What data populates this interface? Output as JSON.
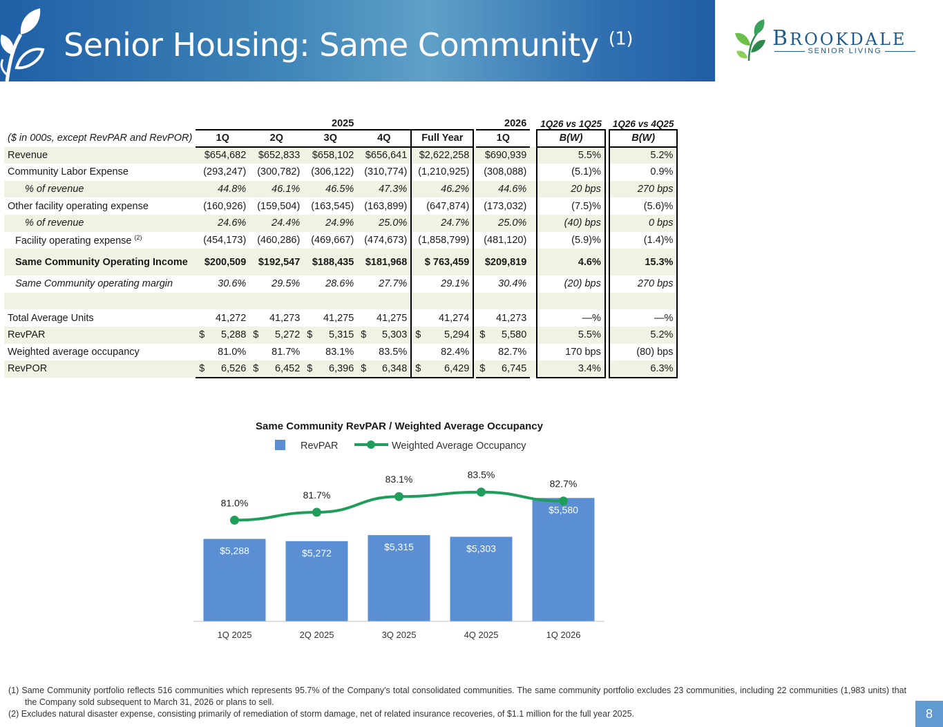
{
  "header": {
    "title": "Senior Housing: Same Community",
    "title_sup": "(1)",
    "logo_name_first": "B",
    "logo_name_rest": "ROOKDALE",
    "logo_sub": "SENIOR LIVING"
  },
  "table": {
    "year_2025": "2025",
    "year_2026": "2026",
    "cmp1_header": "1Q26 vs 1Q25",
    "cmp2_header": "1Q26 vs 4Q25",
    "units_label": "($ in 000s, except RevPAR and RevPOR)",
    "col_headers": [
      "1Q",
      "2Q",
      "3Q",
      "4Q",
      "Full Year",
      "1Q",
      "B(W)",
      "B(W)"
    ],
    "rows": [
      {
        "label": "Revenue",
        "values": [
          "$654,682",
          "$652,833",
          "$658,102",
          "$656,641",
          "$2,622,258",
          "$690,939",
          "5.5%",
          "5.2%"
        ]
      },
      {
        "label": "Community Labor Expense",
        "values": [
          "(293,247)",
          "(300,782)",
          "(306,122)",
          "(310,774)",
          "(1,210,925)",
          "(308,088)",
          "(5.1)%",
          "0.9%"
        ]
      },
      {
        "label": "% of revenue",
        "values": [
          "44.8%",
          "46.1%",
          "46.5%",
          "47.3%",
          "46.2%",
          "44.6%",
          "20 bps",
          "270 bps"
        ]
      },
      {
        "label": "Other facility operating expense",
        "values": [
          "(160,926)",
          "(159,504)",
          "(163,545)",
          "(163,899)",
          "(647,874)",
          "(173,032)",
          "(7.5)%",
          "(5.6)%"
        ]
      },
      {
        "label": "% of revenue",
        "values": [
          "24.6%",
          "24.4%",
          "24.9%",
          "25.0%",
          "24.7%",
          "25.0%",
          "(40) bps",
          "0 bps"
        ]
      },
      {
        "label": "Facility operating expense",
        "label_sup": "(2)",
        "values": [
          "(454,173)",
          "(460,286)",
          "(469,667)",
          "(474,673)",
          "(1,858,799)",
          "(481,120)",
          "(5.9)%",
          "(1.4)%"
        ]
      },
      {
        "label": "Same Community Operating Income",
        "values": [
          "$200,509",
          "$192,547",
          "$188,435",
          "$181,968",
          "$ 763,459",
          "$209,819",
          "4.6%",
          "15.3%"
        ]
      },
      {
        "label": "Same Community operating margin",
        "values": [
          "30.6%",
          "29.5%",
          "28.6%",
          "27.7%",
          "29.1%",
          "30.4%",
          "(20) bps",
          "270 bps"
        ]
      },
      {
        "label": "Total Average Units",
        "values": [
          "41,272",
          "41,273",
          "41,275",
          "41,275",
          "41,274",
          "41,273",
          "—%",
          "—%"
        ]
      },
      {
        "label": "RevPAR",
        "currency": "$",
        "values": [
          "5,288",
          "5,272",
          "5,315",
          "5,303",
          "5,294",
          "5,580",
          "5.5%",
          "5.2%"
        ]
      },
      {
        "label": "Weighted average occupancy",
        "values": [
          "81.0%",
          "81.7%",
          "83.1%",
          "83.5%",
          "82.4%",
          "82.7%",
          "170 bps",
          "(80) bps"
        ]
      },
      {
        "label": "RevPOR",
        "currency": "$",
        "values": [
          "6,526",
          "6,452",
          "6,396",
          "6,348",
          "6,429",
          "6,745",
          "3.4%",
          "6.3%"
        ]
      }
    ]
  },
  "chart_data": {
    "type": "bar",
    "title": "Same Community RevPAR / Weighted Average Occupancy",
    "categories": [
      "1Q 2025",
      "2Q 2025",
      "3Q 2025",
      "4Q 2025",
      "1Q 2026"
    ],
    "series": [
      {
        "name": "RevPAR",
        "type": "bar",
        "values": [
          5288,
          5272,
          5315,
          5303,
          5580
        ],
        "labels": [
          "$5,288",
          "$5,272",
          "$5,315",
          "$5,303",
          "$5,580"
        ],
        "color": "#5b8fd4"
      },
      {
        "name": "Weighted Average Occupancy",
        "type": "line",
        "values": [
          81.0,
          81.7,
          83.1,
          83.5,
          82.7
        ],
        "labels": [
          "81.0%",
          "81.7%",
          "83.1%",
          "83.5%",
          "82.7%"
        ],
        "color": "#1e9e5a"
      }
    ],
    "legend": "top",
    "grid": false
  },
  "footnotes": {
    "fn1": "(1) Same Community portfolio reflects 516 communities which represents 95.7% of the Company's total consolidated communities. The same community portfolio excludes 23 communities, including 22 communities (1,983 units) that the Company sold subsequent to March 31, 2026 or plans to sell.",
    "fn2": "(2) Excludes natural disaster expense, consisting primarily of remediation of storm damage, net of related insurance recoveries, of $1.1 million for the full year 2025."
  },
  "page_number": "8"
}
